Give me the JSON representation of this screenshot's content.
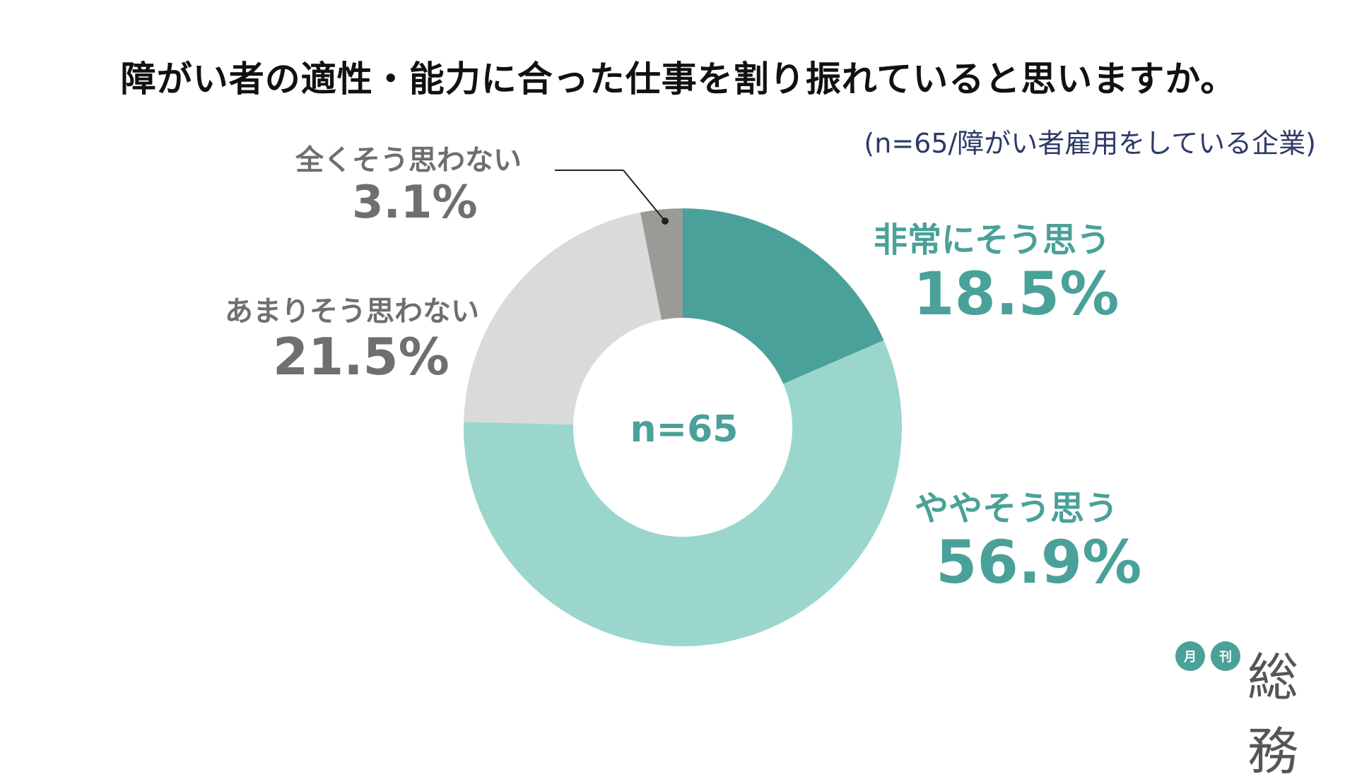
{
  "title": "障がい者の適性・能力に合った仕事を割り振れていると思いますか。",
  "subtitle": "(n=65/障がい者雇用をしている企業)",
  "center_label": "n=65",
  "logo": {
    "badge1": "月",
    "badge2": "刊",
    "text": "総務"
  },
  "colors": {
    "strong_agree": "#4aa199",
    "agree": "#9bd6cd",
    "disagree": "#dadada",
    "strong_disagree": "#9a9a96",
    "teal_text": "#4aa199",
    "gray_text": "#6f6f6f"
  },
  "chart_data": {
    "type": "pie",
    "donut": true,
    "total": "n=65",
    "slices": [
      {
        "label": "非常にそう思う",
        "value": 18.5,
        "display": "18.5%",
        "color": "#4aa199"
      },
      {
        "label": "ややそう思う",
        "value": 56.9,
        "display": "56.9%",
        "color": "#9bd6cd"
      },
      {
        "label": "あまりそう思わない",
        "value": 21.5,
        "display": "21.5%",
        "color": "#dadada"
      },
      {
        "label": "全くそう思わない",
        "value": 3.1,
        "display": "3.1%",
        "color": "#9a9a96"
      }
    ]
  }
}
